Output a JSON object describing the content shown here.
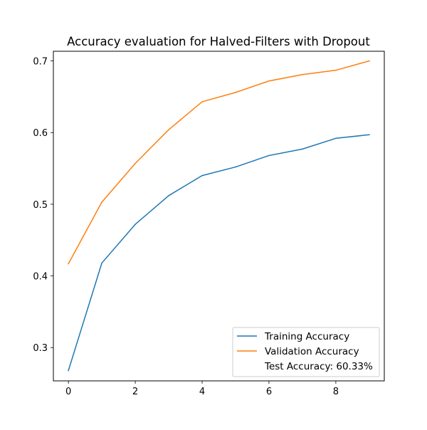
{
  "chart_data": {
    "type": "line",
    "title": "Accuracy evaluation for Halved-Filters with Dropout",
    "xlabel": "",
    "ylabel": "",
    "x": [
      0,
      1,
      2,
      3,
      4,
      5,
      6,
      7,
      8,
      9
    ],
    "xlim": [
      -0.45,
      9.45
    ],
    "ylim": [
      0.2535,
      0.7135
    ],
    "xticks": [
      0,
      2,
      4,
      6,
      8
    ],
    "yticks": [
      0.3,
      0.4,
      0.5,
      0.6,
      0.7
    ],
    "grid": false,
    "legend_position": "lower-right",
    "series": [
      {
        "name": "Training Accuracy",
        "color": "#1f77b4",
        "values": [
          0.268,
          0.418,
          0.472,
          0.512,
          0.54,
          0.552,
          0.568,
          0.577,
          0.592,
          0.597
        ]
      },
      {
        "name": "Validation Accuracy",
        "color": "#ff7f0e",
        "values": [
          0.417,
          0.503,
          0.557,
          0.604,
          0.643,
          0.656,
          0.672,
          0.681,
          0.687,
          0.7
        ]
      }
    ],
    "legend_extra": "Test Accuracy: 60.33%"
  }
}
